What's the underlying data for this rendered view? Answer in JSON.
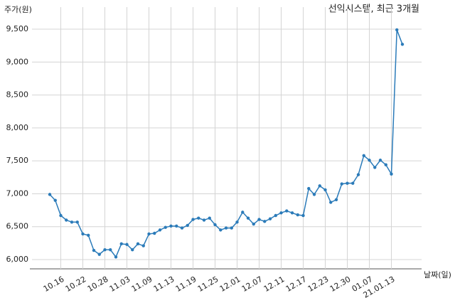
{
  "chart_data": {
    "type": "line",
    "title": "선익시스템, 최근 3개월",
    "y_label": "주가(원)",
    "x_label": "날짜(일)",
    "categories": [
      null,
      null,
      "10.16",
      null,
      null,
      null,
      "10.22",
      null,
      null,
      null,
      "10.28",
      null,
      null,
      null,
      "11.03",
      null,
      null,
      null,
      "11.09",
      null,
      null,
      null,
      "11.13",
      null,
      null,
      null,
      "11.19",
      null,
      null,
      null,
      "11.25",
      null,
      null,
      null,
      "12.01",
      null,
      null,
      null,
      "12.07",
      null,
      null,
      null,
      "12.11",
      null,
      null,
      null,
      "12.17",
      null,
      null,
      null,
      "12.23",
      null,
      null,
      null,
      "12.30",
      null,
      null,
      null,
      "01.07",
      null,
      null,
      null,
      "21.01.13",
      null,
      null
    ],
    "values": [
      6990,
      6900,
      6670,
      6600,
      6570,
      6570,
      6390,
      6370,
      6140,
      6080,
      6150,
      6150,
      6040,
      6240,
      6230,
      6150,
      6240,
      6210,
      6390,
      6400,
      6450,
      6490,
      6510,
      6510,
      6480,
      6520,
      6610,
      6630,
      6600,
      6630,
      6530,
      6450,
      6480,
      6480,
      6570,
      6720,
      6630,
      6540,
      6610,
      6580,
      6620,
      6670,
      6710,
      6740,
      6710,
      6680,
      6670,
      7080,
      6990,
      7120,
      7060,
      6870,
      6910,
      7150,
      7160,
      7160,
      7290,
      7580,
      7510,
      7400,
      7510,
      7440,
      7300,
      9490,
      9270
    ],
    "color": "#2b7bb9",
    "ylim": [
      5860,
      9835
    ],
    "yticks": [
      {
        "value": 6000,
        "label": "6,000"
      },
      {
        "value": 6500,
        "label": "6,500"
      },
      {
        "value": 7000,
        "label": "7,000"
      },
      {
        "value": 7500,
        "label": "7,500"
      },
      {
        "value": 8000,
        "label": "8,000"
      },
      {
        "value": 8500,
        "label": "8,500"
      },
      {
        "value": 9000,
        "label": "9,000"
      },
      {
        "value": 9500,
        "label": "9,500"
      }
    ],
    "grid": true
  }
}
